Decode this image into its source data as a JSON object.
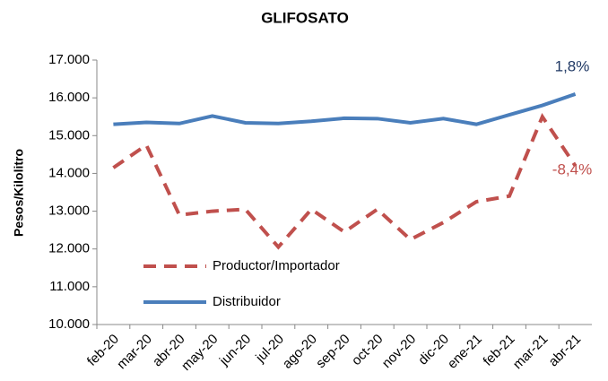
{
  "chart_data": {
    "type": "line",
    "title": "GLIFOSATO",
    "ylabel": "Pesos/Kilolitro",
    "categories": [
      "feb-20",
      "mar-20",
      "abr-20",
      "may-20",
      "jun-20",
      "jul-20",
      "ago-20",
      "sep-20",
      "oct-20",
      "nov-20",
      "dic-20",
      "ene-21",
      "feb-21",
      "mar-21",
      "abr-21"
    ],
    "series": [
      {
        "name": "Productor/Importador",
        "color": "#c0504d",
        "dashed": true,
        "values": [
          14150,
          14750,
          12900,
          13000,
          13050,
          12050,
          13050,
          12450,
          13050,
          12250,
          12700,
          13250,
          13400,
          15500,
          14200
        ]
      },
      {
        "name": "Distribuidor",
        "color": "#4a7ebb",
        "dashed": false,
        "values": [
          15300,
          15350,
          15320,
          15520,
          15340,
          15320,
          15380,
          15460,
          15450,
          15340,
          15450,
          15300,
          15550,
          15800,
          16100
        ]
      }
    ],
    "annotations": [
      "1,8%",
      "-8,4%"
    ],
    "ylim": [
      10000,
      17000
    ],
    "yticks": [
      {
        "value": 10000,
        "label": "10.000"
      },
      {
        "value": 11000,
        "label": "11.000"
      },
      {
        "value": 12000,
        "label": "12.000"
      },
      {
        "value": 13000,
        "label": "13.000"
      },
      {
        "value": 14000,
        "label": "14.000"
      },
      {
        "value": 15000,
        "label": "15.000"
      },
      {
        "value": 16000,
        "label": "16.000"
      },
      {
        "value": 17000,
        "label": "17.000"
      }
    ],
    "grid": false
  }
}
